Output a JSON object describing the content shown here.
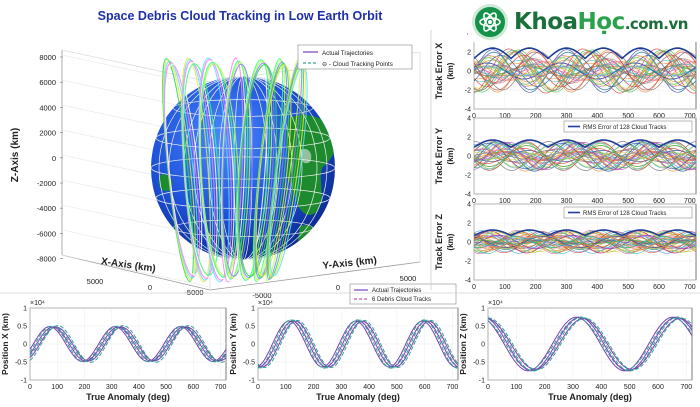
{
  "logo": {
    "part1": "Khoa",
    "part2": "Học",
    "suffix": ".com.vn",
    "full": "KhoaHoc.com.vn"
  },
  "chart_data": [
    {
      "id": "globe",
      "type": "scatter",
      "title": "Space Debris Cloud Tracking in Low Earth Orbit",
      "xlabel": "X-Axis (km)",
      "ylabel": "Y-Axis (km)",
      "zlabel": "Z-Axis (km)",
      "zticks": [
        8000,
        6000,
        4000,
        2000,
        0,
        -2000,
        -4000,
        -6000,
        -8000
      ],
      "xticks": [
        5000,
        0,
        -5000
      ],
      "yticks": [
        -5000,
        0,
        5000
      ],
      "legend": [
        "Actual Trajectories",
        "⊖ - Cloud Tracking Points"
      ],
      "legend_position": "top-right"
    },
    {
      "id": "err-x",
      "type": "line",
      "xlabel": "",
      "ylabel": "Track Error X (km)",
      "xlim": [
        0,
        720
      ],
      "ylim": [
        -4,
        4
      ],
      "xticks": [
        0,
        100,
        200,
        300,
        400,
        500,
        600,
        700
      ],
      "yticks": [
        4,
        2,
        0,
        -2,
        -4
      ],
      "legend": [],
      "amplitude": 2.3,
      "period": 240,
      "line_count": 40
    },
    {
      "id": "err-y",
      "type": "line",
      "xlabel": "",
      "ylabel": "Track Error Y (km)",
      "xlim": [
        0,
        720
      ],
      "ylim": [
        -4,
        4
      ],
      "xticks": [
        0,
        100,
        200,
        300,
        400,
        500,
        600,
        700
      ],
      "yticks": [
        4,
        2,
        0,
        -2,
        -4
      ],
      "legend": [
        "RMS Error of 128 Cloud Tracks"
      ],
      "amplitude": 1.6,
      "period": 240,
      "line_count": 40
    },
    {
      "id": "err-z",
      "type": "line",
      "xlabel": "",
      "ylabel": "Track Error Z (km)",
      "xlim": [
        0,
        720
      ],
      "ylim": [
        -4,
        4
      ],
      "xticks": [
        0,
        100,
        200,
        300,
        400,
        500,
        600,
        700
      ],
      "yticks": [
        4,
        2,
        0,
        -2,
        -4
      ],
      "legend": [
        "RMS Error of 128 Cloud Tracks"
      ],
      "amplitude": 1.2,
      "period": 240,
      "line_count": 40
    },
    {
      "id": "pos-x",
      "type": "line",
      "exponent_label": "×10⁴",
      "xlabel": "True Anomaly (deg)",
      "ylabel": "Position X (km)",
      "xlim": [
        0,
        720
      ],
      "ylim": [
        -1,
        1
      ],
      "xticks": [
        0,
        100,
        200,
        300,
        400,
        500,
        600,
        700
      ],
      "yticks": [
        1,
        0.5,
        0,
        -0.5,
        -1
      ],
      "legend": [],
      "amplitude": 0.5,
      "period": 240,
      "peak": 90,
      "line_count": 6
    },
    {
      "id": "pos-y",
      "type": "line",
      "exponent_label": "×10⁴",
      "xlabel": "True Anomaly (deg)",
      "ylabel": "Position Y (km)",
      "xlim": [
        0,
        720
      ],
      "ylim": [
        -1,
        1
      ],
      "xticks": [
        0,
        100,
        200,
        300,
        400,
        500,
        600,
        700
      ],
      "yticks": [
        1,
        0.5,
        0,
        -0.5,
        -1
      ],
      "legend": [
        "Actual Trajectories",
        "6 Debris Cloud Tracks"
      ],
      "amplitude": 0.65,
      "period": 240,
      "peak": 130,
      "line_count": 6
    },
    {
      "id": "pos-z",
      "type": "line",
      "exponent_label": "×10⁴",
      "xlabel": "True Anomaly (deg)",
      "ylabel": "Position Z (km)",
      "xlim": [
        0,
        720
      ],
      "ylim": [
        -1,
        1
      ],
      "xticks": [
        0,
        100,
        200,
        300,
        400,
        500,
        600,
        700
      ],
      "yticks": [
        1,
        0.5,
        0,
        -0.5,
        -1
      ],
      "legend": [],
      "amplitude": 0.75,
      "period": 340,
      "peak": 330,
      "line_count": 6
    }
  ],
  "colors": {
    "title": "#1f2fa8",
    "actual": "#7b3fb4",
    "cloud": "#2fa88f",
    "rms": "#1f3d99",
    "ocean": "#1c4fd8",
    "land": "#1d8a2e"
  }
}
